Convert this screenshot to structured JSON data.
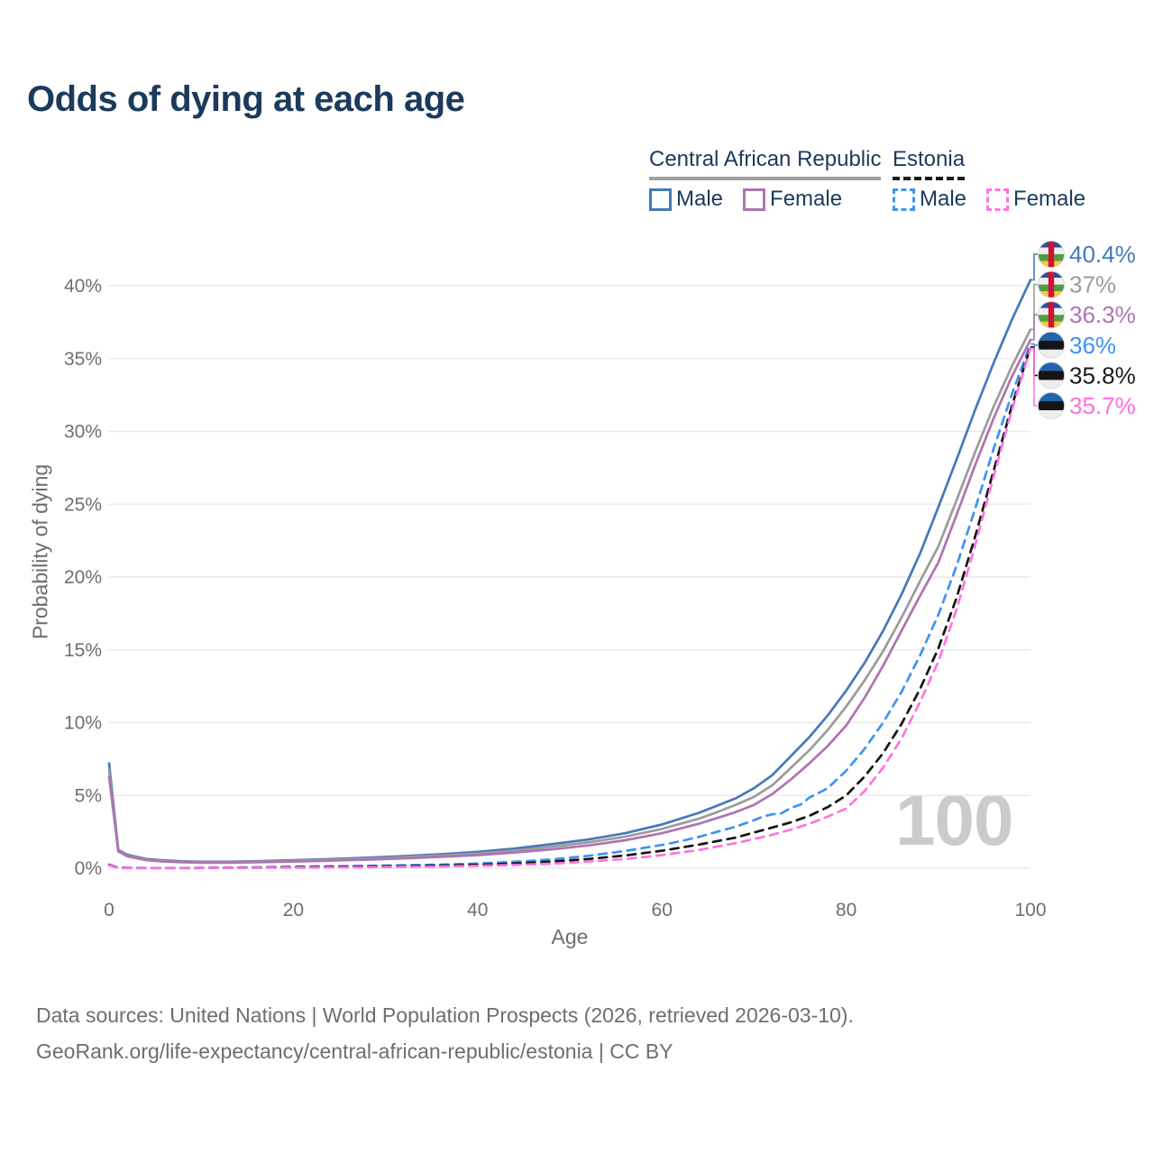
{
  "title": "Odds of dying at each age",
  "watermark": "100",
  "legend": {
    "car": {
      "label": "Central African Republic",
      "male": "Male",
      "female": "Female"
    },
    "estonia": {
      "label": "Estonia",
      "male": "Male",
      "female": "Female"
    }
  },
  "footer": {
    "line1": "Data sources: United Nations | World Population Prospects (2026, retrieved 2026-03-10).",
    "line2": "GeoRank.org/life-expectancy/central-african-republic/estonia | CC BY"
  },
  "chart_data": {
    "type": "line",
    "title": "Odds of dying at each age",
    "xlabel": "Age",
    "ylabel": "Probability of dying",
    "xlim": [
      0,
      100
    ],
    "ylim": [
      0,
      42
    ],
    "x_ticks": [
      0,
      20,
      40,
      60,
      80,
      100
    ],
    "y_ticks": [
      0,
      5,
      10,
      15,
      20,
      25,
      30,
      35,
      40
    ],
    "y_tick_suffix": "%",
    "grid": "horizontal",
    "legend_position": "top-right",
    "series": [
      {
        "name": "Central African Republic Male",
        "country": "Central African Republic",
        "sex": "Male",
        "color": "#4579b9",
        "label_color": "#4579b9",
        "dash": null,
        "flag": "caf",
        "end_label": "40.4%",
        "end_value": 40.4,
        "points": [
          [
            0,
            7.2
          ],
          [
            1,
            1.25
          ],
          [
            2,
            0.92
          ],
          [
            4,
            0.64
          ],
          [
            6,
            0.53
          ],
          [
            8,
            0.47
          ],
          [
            10,
            0.44
          ],
          [
            13,
            0.44
          ],
          [
            16,
            0.48
          ],
          [
            20,
            0.55
          ],
          [
            24,
            0.63
          ],
          [
            28,
            0.72
          ],
          [
            32,
            0.83
          ],
          [
            36,
            0.96
          ],
          [
            40,
            1.12
          ],
          [
            44,
            1.35
          ],
          [
            48,
            1.65
          ],
          [
            52,
            1.97
          ],
          [
            56,
            2.4
          ],
          [
            60,
            3.0
          ],
          [
            64,
            3.8
          ],
          [
            66,
            4.3
          ],
          [
            68,
            4.8
          ],
          [
            70,
            5.5
          ],
          [
            72,
            6.4
          ],
          [
            74,
            7.7
          ],
          [
            76,
            9.0
          ],
          [
            78,
            10.5
          ],
          [
            80,
            12.2
          ],
          [
            82,
            14.1
          ],
          [
            84,
            16.3
          ],
          [
            86,
            18.8
          ],
          [
            88,
            21.6
          ],
          [
            90,
            24.8
          ],
          [
            92,
            28.1
          ],
          [
            94,
            31.5
          ],
          [
            96,
            34.7
          ],
          [
            98,
            37.7
          ],
          [
            100,
            40.4
          ]
        ]
      },
      {
        "name": "Central African Republic Both sexes",
        "country": "Central African Republic",
        "sex": "Both",
        "color": "#9b9b9b",
        "label_color": "#9b9b9b",
        "dash": null,
        "flag": "caf",
        "end_label": "37%",
        "end_value": 37.0,
        "points": [
          [
            0,
            6.75
          ],
          [
            1,
            1.2
          ],
          [
            2,
            0.87
          ],
          [
            4,
            0.6
          ],
          [
            6,
            0.49
          ],
          [
            8,
            0.44
          ],
          [
            10,
            0.41
          ],
          [
            13,
            0.41
          ],
          [
            16,
            0.45
          ],
          [
            20,
            0.51
          ],
          [
            24,
            0.58
          ],
          [
            28,
            0.66
          ],
          [
            32,
            0.75
          ],
          [
            36,
            0.87
          ],
          [
            40,
            1.01
          ],
          [
            44,
            1.21
          ],
          [
            48,
            1.47
          ],
          [
            52,
            1.77
          ],
          [
            56,
            2.16
          ],
          [
            60,
            2.7
          ],
          [
            64,
            3.4
          ],
          [
            66,
            3.85
          ],
          [
            68,
            4.35
          ],
          [
            70,
            4.9
          ],
          [
            72,
            5.7
          ],
          [
            74,
            6.9
          ],
          [
            76,
            8.1
          ],
          [
            78,
            9.5
          ],
          [
            80,
            11.1
          ],
          [
            82,
            12.9
          ],
          [
            84,
            14.9
          ],
          [
            86,
            17.2
          ],
          [
            88,
            19.7
          ],
          [
            90,
            22.1
          ],
          [
            92,
            25.3
          ],
          [
            94,
            28.6
          ],
          [
            96,
            31.7
          ],
          [
            98,
            34.5
          ],
          [
            100,
            37.0
          ]
        ]
      },
      {
        "name": "Central African Republic Female",
        "country": "Central African Republic",
        "sex": "Female",
        "color": "#ad74b0",
        "label_color": "#ad74b0",
        "dash": null,
        "flag": "caf",
        "end_label": "36.3%",
        "end_value": 36.3,
        "points": [
          [
            0,
            6.3
          ],
          [
            1,
            1.15
          ],
          [
            2,
            0.82
          ],
          [
            4,
            0.56
          ],
          [
            6,
            0.46
          ],
          [
            8,
            0.41
          ],
          [
            10,
            0.38
          ],
          [
            13,
            0.38
          ],
          [
            16,
            0.41
          ],
          [
            20,
            0.46
          ],
          [
            24,
            0.52
          ],
          [
            28,
            0.59
          ],
          [
            32,
            0.67
          ],
          [
            36,
            0.78
          ],
          [
            40,
            0.9
          ],
          [
            44,
            1.08
          ],
          [
            48,
            1.29
          ],
          [
            52,
            1.56
          ],
          [
            56,
            1.92
          ],
          [
            60,
            2.4
          ],
          [
            64,
            3.05
          ],
          [
            66,
            3.45
          ],
          [
            68,
            3.85
          ],
          [
            70,
            4.35
          ],
          [
            72,
            5.1
          ],
          [
            74,
            6.1
          ],
          [
            76,
            7.2
          ],
          [
            78,
            8.4
          ],
          [
            80,
            9.8
          ],
          [
            82,
            11.7
          ],
          [
            84,
            13.9
          ],
          [
            86,
            16.3
          ],
          [
            88,
            18.7
          ],
          [
            90,
            21.0
          ],
          [
            92,
            24.3
          ],
          [
            94,
            27.7
          ],
          [
            96,
            30.9
          ],
          [
            98,
            33.8
          ],
          [
            100,
            36.3
          ]
        ]
      },
      {
        "name": "Estonia Male",
        "country": "Estonia",
        "sex": "Male",
        "color": "#3f93f0",
        "label_color": "#3f93f0",
        "dash": "9 7",
        "flag": "est",
        "end_label": "36%",
        "end_value": 36.0,
        "points": [
          [
            0,
            0.25
          ],
          [
            1,
            0.03
          ],
          [
            4,
            0.02
          ],
          [
            8,
            0.02
          ],
          [
            12,
            0.03
          ],
          [
            16,
            0.06
          ],
          [
            20,
            0.1
          ],
          [
            24,
            0.13
          ],
          [
            28,
            0.16
          ],
          [
            32,
            0.2
          ],
          [
            36,
            0.25
          ],
          [
            40,
            0.32
          ],
          [
            44,
            0.44
          ],
          [
            48,
            0.6
          ],
          [
            52,
            0.85
          ],
          [
            56,
            1.18
          ],
          [
            60,
            1.6
          ],
          [
            62,
            1.85
          ],
          [
            64,
            2.15
          ],
          [
            66,
            2.5
          ],
          [
            68,
            2.85
          ],
          [
            70,
            3.3
          ],
          [
            71,
            3.55
          ],
          [
            72,
            3.7
          ],
          [
            73,
            3.78
          ],
          [
            74,
            4.15
          ],
          [
            75,
            4.35
          ],
          [
            76,
            4.85
          ],
          [
            78,
            5.5
          ],
          [
            80,
            6.7
          ],
          [
            82,
            8.2
          ],
          [
            84,
            10.0
          ],
          [
            86,
            12.1
          ],
          [
            88,
            14.6
          ],
          [
            90,
            17.4
          ],
          [
            92,
            20.8
          ],
          [
            94,
            24.7
          ],
          [
            96,
            28.8
          ],
          [
            98,
            32.6
          ],
          [
            100,
            36.0
          ]
        ]
      },
      {
        "name": "Estonia Both sexes",
        "country": "Estonia",
        "sex": "Both",
        "color": "#151515",
        "label_color": "#1a1a1a",
        "dash": "9 7",
        "flag": "est",
        "end_label": "35.8%",
        "end_value": 35.8,
        "points": [
          [
            0,
            0.22
          ],
          [
            1,
            0.025
          ],
          [
            4,
            0.015
          ],
          [
            8,
            0.015
          ],
          [
            12,
            0.025
          ],
          [
            16,
            0.045
          ],
          [
            20,
            0.07
          ],
          [
            24,
            0.09
          ],
          [
            28,
            0.11
          ],
          [
            32,
            0.14
          ],
          [
            36,
            0.18
          ],
          [
            40,
            0.23
          ],
          [
            44,
            0.32
          ],
          [
            48,
            0.45
          ],
          [
            52,
            0.63
          ],
          [
            56,
            0.87
          ],
          [
            60,
            1.2
          ],
          [
            64,
            1.62
          ],
          [
            68,
            2.1
          ],
          [
            70,
            2.45
          ],
          [
            72,
            2.8
          ],
          [
            74,
            3.15
          ],
          [
            76,
            3.6
          ],
          [
            78,
            4.2
          ],
          [
            80,
            5.0
          ],
          [
            82,
            6.3
          ],
          [
            84,
            7.9
          ],
          [
            86,
            9.9
          ],
          [
            88,
            12.3
          ],
          [
            90,
            15.1
          ],
          [
            92,
            18.6
          ],
          [
            94,
            22.8
          ],
          [
            96,
            27.3
          ],
          [
            98,
            31.8
          ],
          [
            100,
            35.8
          ]
        ]
      },
      {
        "name": "Estonia Female",
        "country": "Estonia",
        "sex": "Female",
        "color": "#ff74e0",
        "label_color": "#ff6ede",
        "dash": "9 7",
        "flag": "est",
        "end_label": "35.7%",
        "end_value": 35.7,
        "points": [
          [
            0,
            0.2
          ],
          [
            1,
            0.02
          ],
          [
            4,
            0.01
          ],
          [
            8,
            0.01
          ],
          [
            12,
            0.02
          ],
          [
            16,
            0.03
          ],
          [
            20,
            0.04
          ],
          [
            24,
            0.055
          ],
          [
            28,
            0.07
          ],
          [
            32,
            0.09
          ],
          [
            36,
            0.12
          ],
          [
            40,
            0.16
          ],
          [
            44,
            0.22
          ],
          [
            48,
            0.31
          ],
          [
            52,
            0.45
          ],
          [
            56,
            0.63
          ],
          [
            60,
            0.9
          ],
          [
            64,
            1.25
          ],
          [
            68,
            1.72
          ],
          [
            70,
            2.0
          ],
          [
            72,
            2.3
          ],
          [
            74,
            2.65
          ],
          [
            76,
            3.05
          ],
          [
            78,
            3.55
          ],
          [
            80,
            4.1
          ],
          [
            82,
            5.3
          ],
          [
            84,
            6.9
          ],
          [
            86,
            8.9
          ],
          [
            88,
            11.4
          ],
          [
            90,
            14.2
          ],
          [
            92,
            17.8
          ],
          [
            94,
            22.2
          ],
          [
            96,
            26.9
          ],
          [
            98,
            31.5
          ],
          [
            100,
            35.7
          ]
        ]
      }
    ]
  }
}
